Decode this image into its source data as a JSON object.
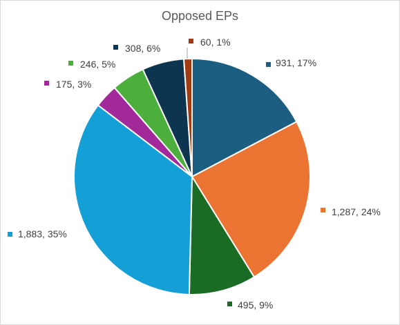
{
  "chart_data": {
    "type": "pie",
    "title": "Opposed EPs",
    "slices": [
      {
        "value": 931,
        "label": "931, 17%",
        "color": "#1b5e82"
      },
      {
        "value": 1287,
        "label": "1,287, 24%",
        "color": "#ec7432"
      },
      {
        "value": 495,
        "label": "495, 9%",
        "color": "#1a6b24"
      },
      {
        "value": 1883,
        "label": "1,883, 35%",
        "color": "#149fd6"
      },
      {
        "value": 175,
        "label": "175, 3%",
        "color": "#a2299a"
      },
      {
        "value": 246,
        "label": "246, 5%",
        "color": "#4cae3b"
      },
      {
        "value": 308,
        "label": "308, 6%",
        "color": "#0e3550"
      },
      {
        "value": 60,
        "label": "60, 1%",
        "color": "#a33b12"
      }
    ],
    "start_angle_deg": 0,
    "direction": "clockwise",
    "data_labels": true,
    "legend": "none"
  }
}
